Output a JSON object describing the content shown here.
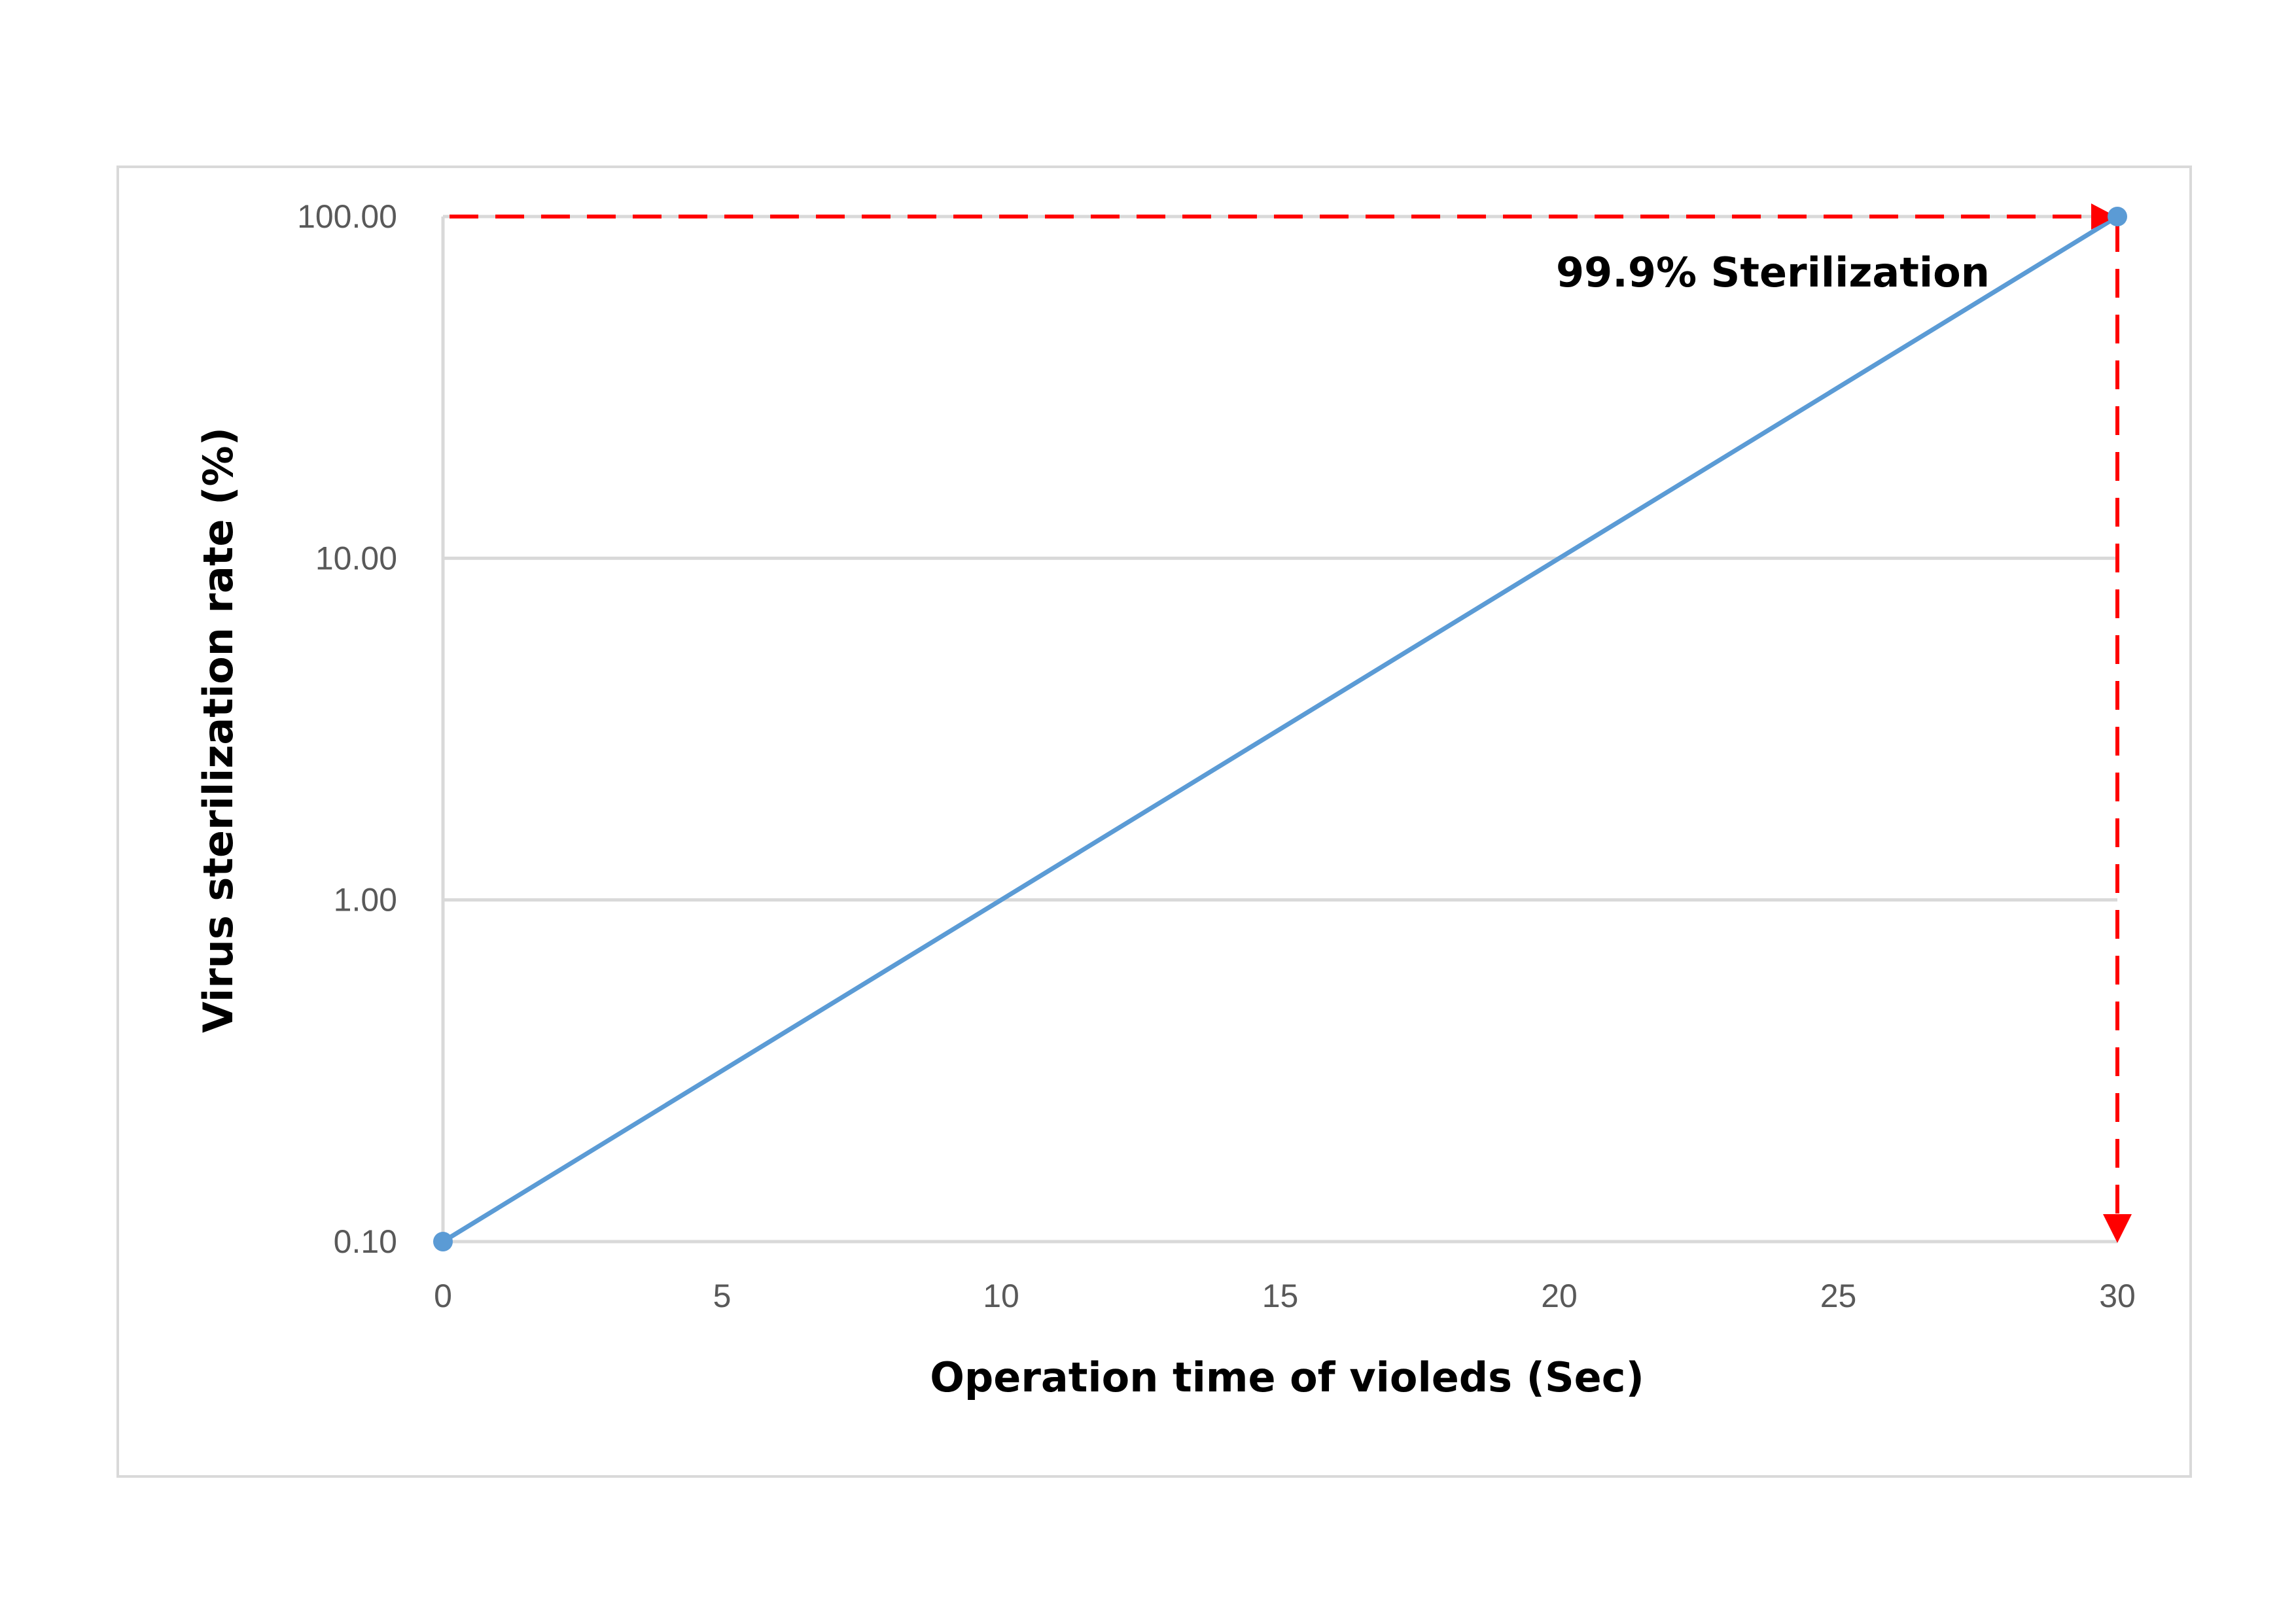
{
  "chart_data": {
    "type": "line",
    "xlabel": "Operation time of violeds (Sec)",
    "ylabel": "Virus sterilization rate (%)",
    "x_scale": "linear",
    "y_scale": "log",
    "xlim": [
      0,
      30
    ],
    "ylim": [
      0.1,
      100
    ],
    "x_ticks": [
      0,
      5,
      10,
      15,
      20,
      25,
      30
    ],
    "x_tick_labels": [
      "0",
      "5",
      "10",
      "15",
      "20",
      "25",
      "30"
    ],
    "y_ticks": [
      0.1,
      1,
      10,
      100
    ],
    "y_tick_labels": [
      "0.10",
      "1.00",
      "10.00",
      "100.00"
    ],
    "grid": "horizontal",
    "legend": "none",
    "series": [
      {
        "x": [
          0,
          30
        ],
        "y": [
          0.1,
          100
        ],
        "color": "#5b9bd5"
      }
    ],
    "annotations": {
      "text": "99.9% Sterilization",
      "line_color": "#ff0000",
      "point": {
        "x": 30,
        "y": 100
      }
    }
  }
}
